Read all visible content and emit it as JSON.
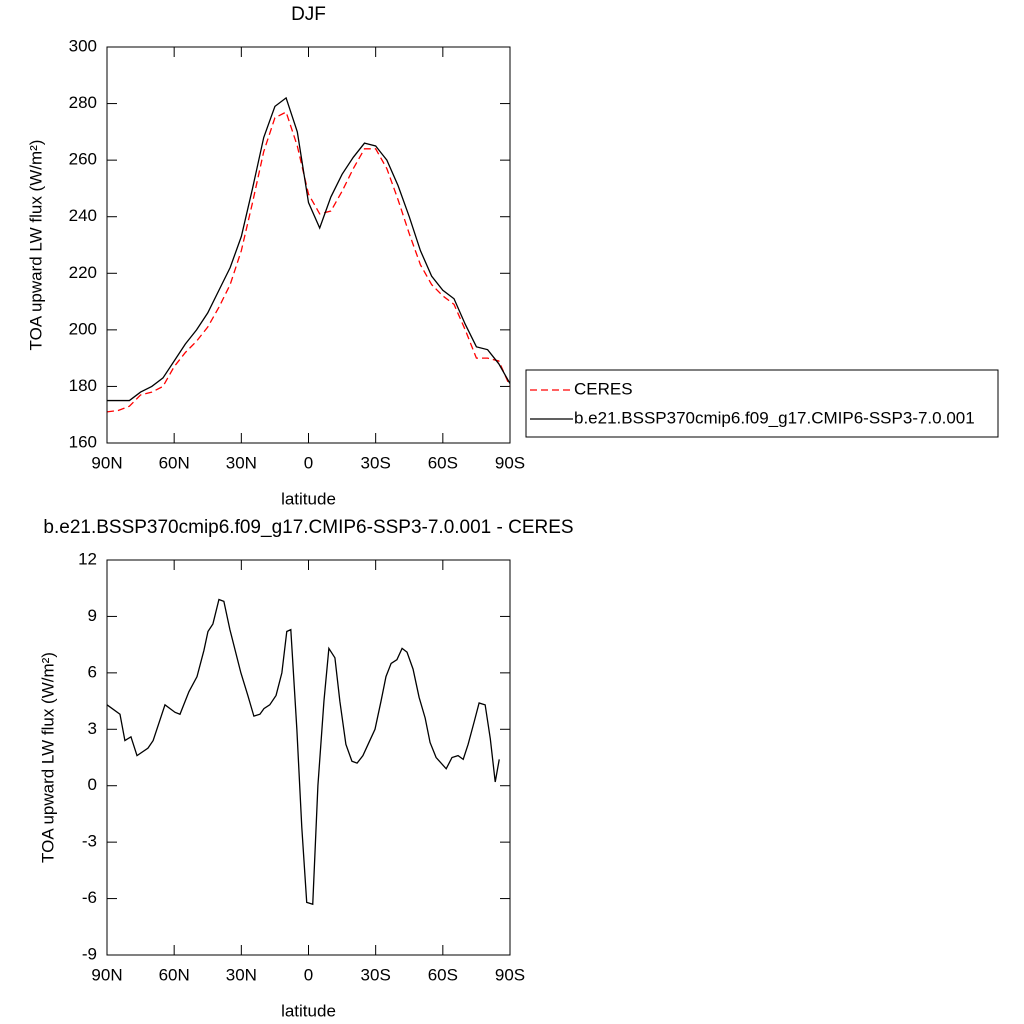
{
  "chart_data": [
    {
      "type": "line",
      "title": "DJF",
      "xlabel": "latitude",
      "ylabel": "TOA upward LW flux (W/m²)",
      "x": [
        90,
        85,
        80,
        75,
        70,
        65,
        60,
        55,
        50,
        45,
        40,
        35,
        30,
        25,
        20,
        15,
        10,
        5,
        0,
        -5,
        -10,
        -15,
        -20,
        -25,
        -30,
        -35,
        -40,
        -45,
        -50,
        -55,
        -60,
        -65,
        -70,
        -75,
        -80,
        -85,
        -90
      ],
      "series": [
        {
          "name": "CERES",
          "color": "#ff0000",
          "line_style": "dashed",
          "values": [
            171,
            171.5,
            173,
            177,
            178,
            180,
            187,
            192,
            196,
            201,
            208,
            216,
            228,
            245,
            263,
            275,
            277,
            265,
            248,
            241,
            242,
            249,
            257,
            264,
            264,
            257,
            246,
            234,
            223,
            216,
            212,
            209,
            200,
            190,
            190,
            189,
            180
          ]
        },
        {
          "name": "b.e21.BSSP370cmip6.f09_g17.CMIP6-SSP3-7.0.001",
          "color": "#000000",
          "line_style": "solid",
          "values": [
            175,
            175,
            175,
            178,
            180,
            183,
            189,
            195,
            200,
            206,
            214,
            222,
            233,
            250,
            268,
            279,
            282,
            270,
            245,
            236,
            247,
            255,
            261,
            266,
            265,
            260,
            251,
            240,
            228,
            219,
            214,
            211,
            202,
            194,
            193,
            188,
            181
          ]
        }
      ],
      "xlim": [
        90,
        -90
      ],
      "xticks": [
        {
          "value": 90,
          "label": "90N"
        },
        {
          "value": 60,
          "label": "60N"
        },
        {
          "value": 30,
          "label": "30N"
        },
        0,
        {
          "value": -30,
          "label": "30S"
        },
        {
          "value": -60,
          "label": "60S"
        },
        {
          "value": -90,
          "label": "90S"
        }
      ],
      "ylim": [
        160,
        300
      ],
      "yticks": [
        160,
        180,
        200,
        220,
        240,
        260,
        280,
        300
      ],
      "legend": "right"
    },
    {
      "type": "line",
      "title": "b.e21.BSSP370cmip6.f09_g17.CMIP6-SSP3-7.0.001 - CERES",
      "xlabel": "latitude",
      "ylabel": "TOA upward LW flux (W/m²)",
      "x": [
        90,
        84.2,
        82,
        79.3,
        76.6,
        71.7,
        69.4,
        64.1,
        59.6,
        57.4,
        53.4,
        49.8,
        46.7,
        44.9,
        42.7,
        40,
        37.8,
        35.1,
        30.2,
        27.1,
        24.4,
        21.7,
        19.9,
        17.3,
        14.5,
        11.9,
        9.7,
        7.9,
        5.2,
        3,
        0.8,
        -1.9,
        -4.2,
        -6.9,
        -9.1,
        -11.8,
        -14,
        -16.7,
        -19.4,
        -21.7,
        -24.3,
        -27,
        -29.7,
        -32.4,
        -34.6,
        -36.9,
        -39.5,
        -41.8,
        -44,
        -46.7,
        -49.4,
        -52.1,
        -54.3,
        -57,
        -61.5,
        -64.1,
        -66.8,
        -69.1,
        -71.3,
        -74,
        -76.2,
        -78.9,
        -81.2,
        -83.4,
        -85.2
      ],
      "series": [
        {
          "color": "#000000",
          "line_style": "solid",
          "values": [
            4.3,
            3.8,
            2.4,
            2.6,
            1.6,
            2.0,
            2.4,
            4.3,
            3.9,
            3.8,
            5.0,
            5.8,
            7.2,
            8.2,
            8.6,
            9.9,
            9.8,
            8.3,
            6.0,
            4.8,
            3.7,
            3.8,
            4.1,
            4.3,
            4.8,
            6.0,
            8.2,
            8.3,
            3.0,
            -2.2,
            -6.2,
            -6.3,
            0,
            4.5,
            7.3,
            6.8,
            4.5,
            2.2,
            1.3,
            1.2,
            1.6,
            2.3,
            3.0,
            4.5,
            5.8,
            6.5,
            6.7,
            7.3,
            7.1,
            6.2,
            4.7,
            3.6,
            2.3,
            1.5,
            0.9,
            1.5,
            1.6,
            1.4,
            2.2,
            3.4,
            4.4,
            4.3,
            2.5,
            0.2,
            1.4
          ]
        }
      ],
      "xlim": [
        90,
        -90
      ],
      "xticks": [
        {
          "value": 90,
          "label": "90N"
        },
        {
          "value": 60,
          "label": "60N"
        },
        {
          "value": 30,
          "label": "30N"
        },
        0,
        {
          "value": -30,
          "label": "30S"
        },
        {
          "value": -60,
          "label": "60S"
        },
        {
          "value": -90,
          "label": "90S"
        }
      ],
      "ylim": [
        -9,
        12
      ],
      "yticks": [
        -9,
        -6,
        -3,
        0,
        3,
        6,
        9,
        12
      ]
    }
  ]
}
